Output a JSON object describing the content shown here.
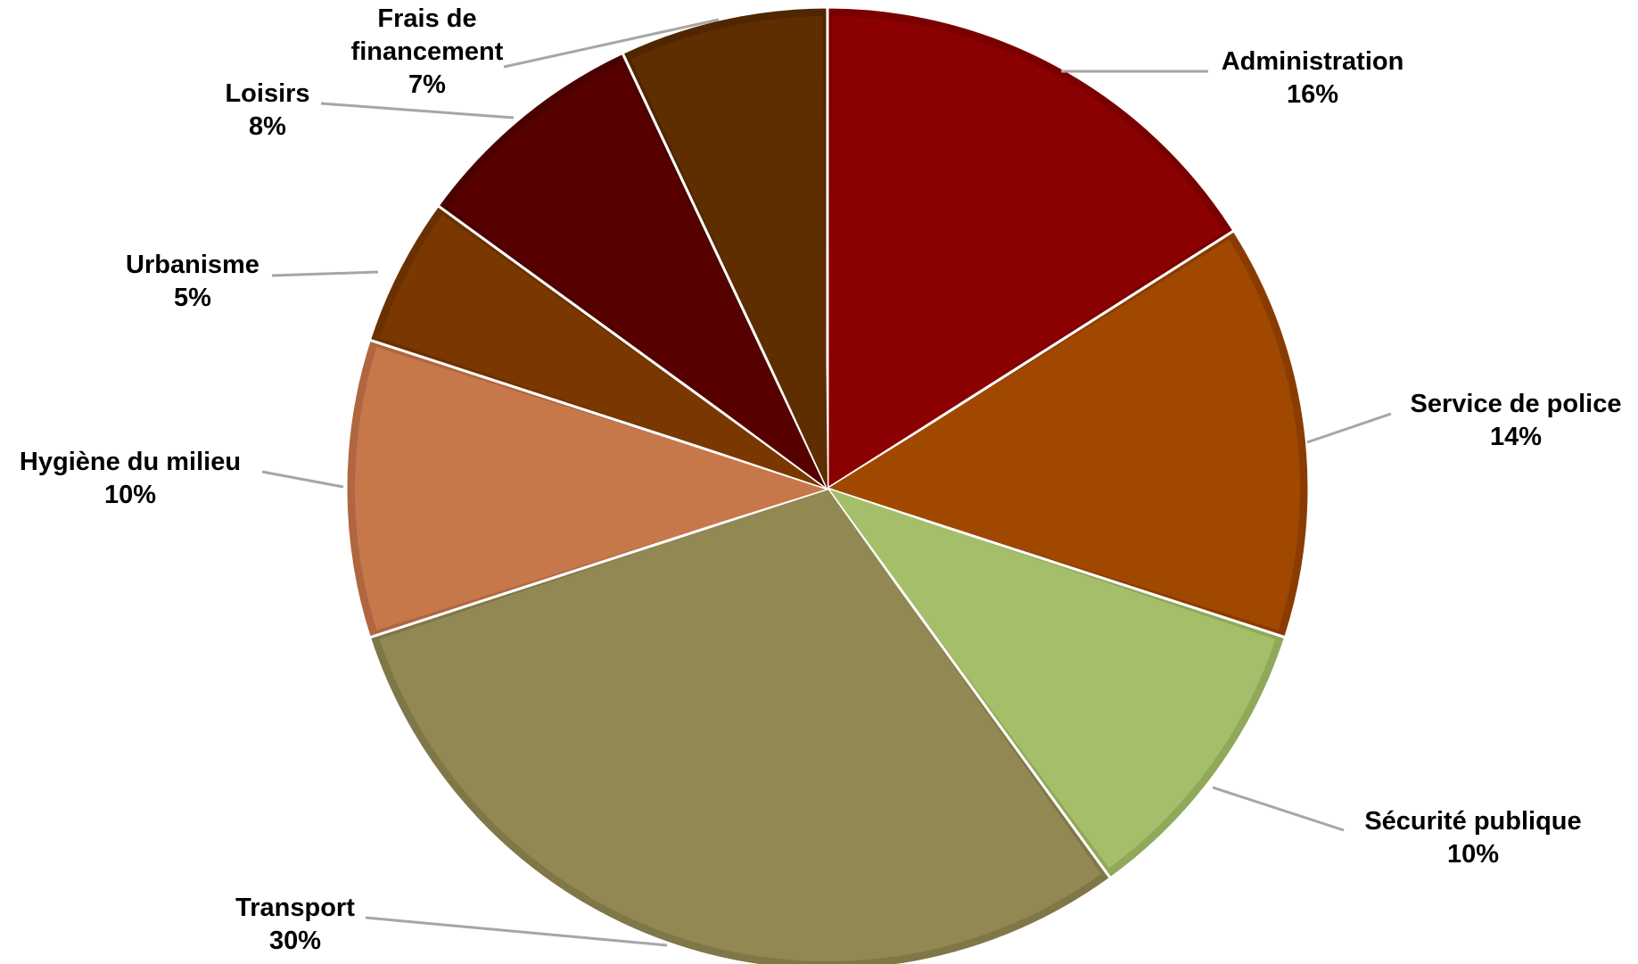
{
  "chart_data": {
    "type": "pie",
    "title": "",
    "slices": [
      {
        "label": "Administration",
        "value": 16,
        "value_label": "16%",
        "color": "#8b0000",
        "edge": "#7a0000"
      },
      {
        "label": "Service de police",
        "value": 14,
        "value_label": "14%",
        "color": "#a04800",
        "edge": "#8a3c00"
      },
      {
        "label": "Sécurité publique",
        "value": 10,
        "value_label": "10%",
        "color": "#a4be6a",
        "edge": "#8fa85a"
      },
      {
        "label": "Transport",
        "value": 30,
        "value_label": "30%",
        "color": "#918853",
        "edge": "#807748"
      },
      {
        "label": "Hygiène du milieu",
        "value": 10,
        "value_label": "10%",
        "color": "#c7784a",
        "edge": "#b06640"
      },
      {
        "label": "Urbanisme",
        "value": 5,
        "value_label": "5%",
        "color": "#7a3800",
        "edge": "#6a3000"
      },
      {
        "label": "Loisirs",
        "value": 8,
        "value_label": "8%",
        "color": "#560000",
        "edge": "#4a0000"
      },
      {
        "label": "Frais de financement",
        "value": 7,
        "value_label": "7%",
        "color": "#5e2d00",
        "edge": "#502600"
      }
    ],
    "start_angle_deg": 0,
    "direction": "clockwise",
    "legend": "none",
    "data_labels": "outside with leader lines"
  }
}
